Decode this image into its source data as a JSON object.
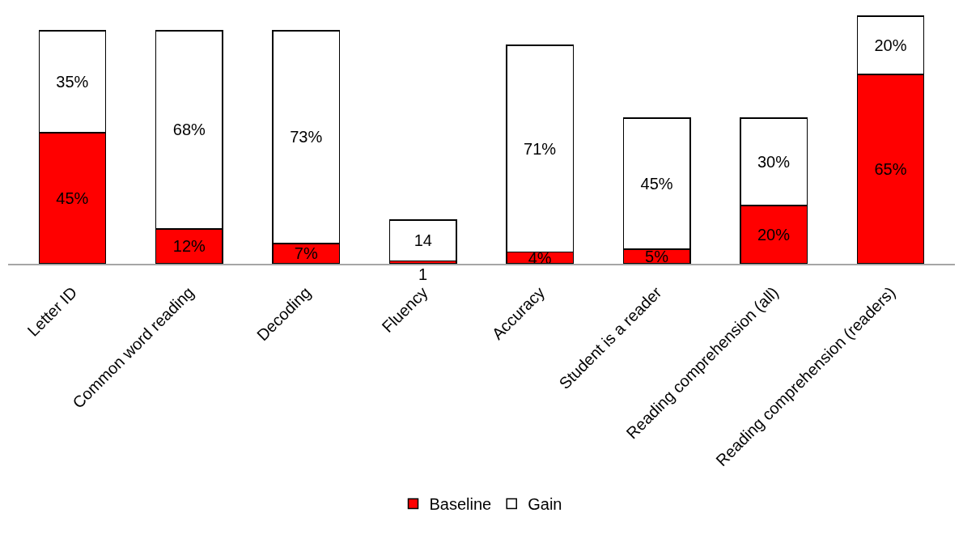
{
  "chart_data": {
    "type": "bar",
    "stacked": true,
    "legend": "bottom",
    "categories": [
      "Letter ID",
      "Common word reading",
      "Decoding",
      "Fluency",
      "Accuracy",
      "Student is a reader",
      "Reading comprehension (all)",
      "Reading comprehension (readers)"
    ],
    "series": [
      {
        "name": "Baseline",
        "color": "#ff0000",
        "values": [
          45,
          12,
          7,
          1,
          4,
          5,
          20,
          65
        ],
        "value_labels": [
          "45%",
          "12%",
          "7%",
          "1",
          "4%",
          "5%",
          "20%",
          "65%"
        ]
      },
      {
        "name": "Gain",
        "color": "#ffffff",
        "values": [
          35,
          68,
          73,
          14,
          71,
          45,
          30,
          20
        ],
        "value_labels": [
          "35%",
          "68%",
          "73%",
          "14",
          "71%",
          "45%",
          "30%",
          "20%"
        ]
      }
    ]
  }
}
